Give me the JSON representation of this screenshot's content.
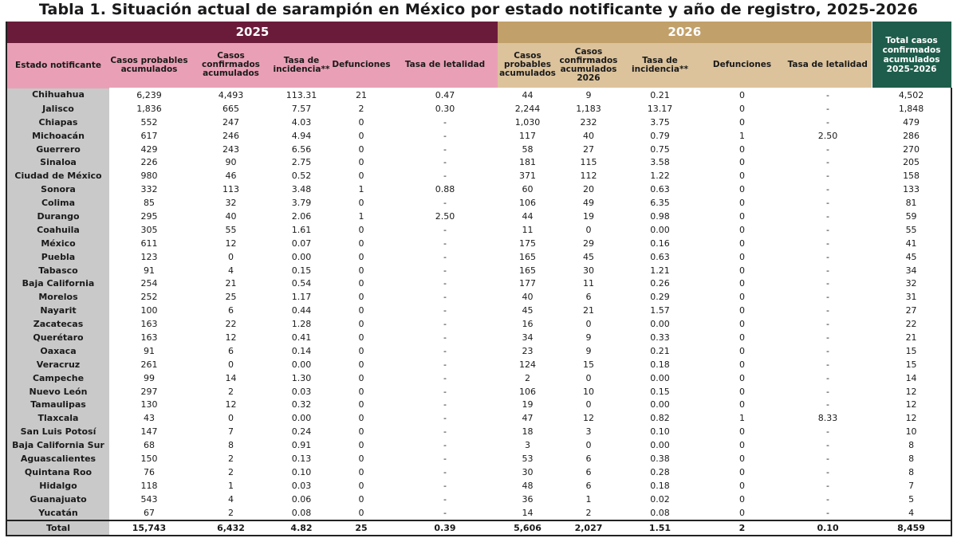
{
  "title": "Tabla 1. Situación actual de sarampión en México por estado notificante y año de registro, 2025-2026",
  "years": {
    "y2025": "2025",
    "y2026": "2026"
  },
  "headers": {
    "state": "Estado notificante",
    "c2025": [
      "Casos probables acumulados",
      "Casos confirmados acumulados",
      "Tasa de incidencia**",
      "Defunciones",
      "Tasa de letalidad"
    ],
    "c2026": [
      "Casos probables acumulados",
      "Casos confirmados acumulados 2026",
      "Tasa de incidencia**",
      "Defunciones",
      "Tasa de letalidad"
    ],
    "total": "Total casos confirmados acumulados 2025-2026"
  },
  "rows": [
    [
      "Chihuahua",
      "6,239",
      "4,493",
      "113.31",
      "21",
      "0.47",
      "44",
      "9",
      "0.21",
      "0",
      "-",
      "4,502"
    ],
    [
      "Jalisco",
      "1,836",
      "665",
      "7.57",
      "2",
      "0.30",
      "2,244",
      "1,183",
      "13.17",
      "0",
      "-",
      "1,848"
    ],
    [
      "Chiapas",
      "552",
      "247",
      "4.03",
      "0",
      "-",
      "1,030",
      "232",
      "3.75",
      "0",
      "-",
      "479"
    ],
    [
      "Michoacán",
      "617",
      "246",
      "4.94",
      "0",
      "-",
      "117",
      "40",
      "0.79",
      "1",
      "2.50",
      "286"
    ],
    [
      "Guerrero",
      "429",
      "243",
      "6.56",
      "0",
      "-",
      "58",
      "27",
      "0.75",
      "0",
      "-",
      "270"
    ],
    [
      "Sinaloa",
      "226",
      "90",
      "2.75",
      "0",
      "-",
      "181",
      "115",
      "3.58",
      "0",
      "-",
      "205"
    ],
    [
      "Ciudad de México",
      "980",
      "46",
      "0.52",
      "0",
      "-",
      "371",
      "112",
      "1.22",
      "0",
      "-",
      "158"
    ],
    [
      "Sonora",
      "332",
      "113",
      "3.48",
      "1",
      "0.88",
      "60",
      "20",
      "0.63",
      "0",
      "-",
      "133"
    ],
    [
      "Colima",
      "85",
      "32",
      "3.79",
      "0",
      "-",
      "106",
      "49",
      "6.35",
      "0",
      "-",
      "81"
    ],
    [
      "Durango",
      "295",
      "40",
      "2.06",
      "1",
      "2.50",
      "44",
      "19",
      "0.98",
      "0",
      "-",
      "59"
    ],
    [
      "Coahuila",
      "305",
      "55",
      "1.61",
      "0",
      "-",
      "11",
      "0",
      "0.00",
      "0",
      "-",
      "55"
    ],
    [
      "México",
      "611",
      "12",
      "0.07",
      "0",
      "-",
      "175",
      "29",
      "0.16",
      "0",
      "-",
      "41"
    ],
    [
      "Puebla",
      "123",
      "0",
      "0.00",
      "0",
      "-",
      "165",
      "45",
      "0.63",
      "0",
      "-",
      "45"
    ],
    [
      "Tabasco",
      "91",
      "4",
      "0.15",
      "0",
      "-",
      "165",
      "30",
      "1.21",
      "0",
      "-",
      "34"
    ],
    [
      "Baja California",
      "254",
      "21",
      "0.54",
      "0",
      "-",
      "177",
      "11",
      "0.26",
      "0",
      "-",
      "32"
    ],
    [
      "Morelos",
      "252",
      "25",
      "1.17",
      "0",
      "-",
      "40",
      "6",
      "0.29",
      "0",
      "-",
      "31"
    ],
    [
      "Nayarit",
      "100",
      "6",
      "0.44",
      "0",
      "-",
      "45",
      "21",
      "1.57",
      "0",
      "-",
      "27"
    ],
    [
      "Zacatecas",
      "163",
      "22",
      "1.28",
      "0",
      "-",
      "16",
      "0",
      "0.00",
      "0",
      "-",
      "22"
    ],
    [
      "Querétaro",
      "163",
      "12",
      "0.41",
      "0",
      "-",
      "34",
      "9",
      "0.33",
      "0",
      "-",
      "21"
    ],
    [
      "Oaxaca",
      "91",
      "6",
      "0.14",
      "0",
      "-",
      "23",
      "9",
      "0.21",
      "0",
      "-",
      "15"
    ],
    [
      "Veracruz",
      "261",
      "0",
      "0.00",
      "0",
      "-",
      "124",
      "15",
      "0.18",
      "0",
      "-",
      "15"
    ],
    [
      "Campeche",
      "99",
      "14",
      "1.30",
      "0",
      "-",
      "2",
      "0",
      "0.00",
      "0",
      "-",
      "14"
    ],
    [
      "Nuevo León",
      "297",
      "2",
      "0.03",
      "0",
      "-",
      "106",
      "10",
      "0.15",
      "0",
      "-",
      "12"
    ],
    [
      "Tamaulipas",
      "130",
      "12",
      "0.32",
      "0",
      "-",
      "19",
      "0",
      "0.00",
      "0",
      "-",
      "12"
    ],
    [
      "Tlaxcala",
      "43",
      "0",
      "0.00",
      "0",
      "-",
      "47",
      "12",
      "0.82",
      "1",
      "8.33",
      "12"
    ],
    [
      "San Luis Potosí",
      "147",
      "7",
      "0.24",
      "0",
      "-",
      "18",
      "3",
      "0.10",
      "0",
      "-",
      "10"
    ],
    [
      "Baja California Sur",
      "68",
      "8",
      "0.91",
      "0",
      "-",
      "3",
      "0",
      "0.00",
      "0",
      "-",
      "8"
    ],
    [
      "Aguascalientes",
      "150",
      "2",
      "0.13",
      "0",
      "-",
      "53",
      "6",
      "0.38",
      "0",
      "-",
      "8"
    ],
    [
      "Quintana Roo",
      "76",
      "2",
      "0.10",
      "0",
      "-",
      "30",
      "6",
      "0.28",
      "0",
      "-",
      "8"
    ],
    [
      "Hidalgo",
      "118",
      "1",
      "0.03",
      "0",
      "-",
      "48",
      "6",
      "0.18",
      "0",
      "-",
      "7"
    ],
    [
      "Guanajuato",
      "543",
      "4",
      "0.06",
      "0",
      "-",
      "36",
      "1",
      "0.02",
      "0",
      "-",
      "5"
    ],
    [
      "Yucatán",
      "67",
      "2",
      "0.08",
      "0",
      "-",
      "14",
      "2",
      "0.08",
      "0",
      "-",
      "4"
    ]
  ],
  "total": [
    "Total",
    "15,743",
    "6,432",
    "4.82",
    "25",
    "0.39",
    "5,606",
    "2,027",
    "1.51",
    "2",
    "0.10",
    "8,459"
  ],
  "colors": {
    "y2025": "#6b1b3a",
    "h2025": "#e9a0b6",
    "y2026": "#c2a06a",
    "h2026": "#dcc39c",
    "totalHead": "#1e5d4b",
    "stateCol": "#c9c9c9"
  }
}
